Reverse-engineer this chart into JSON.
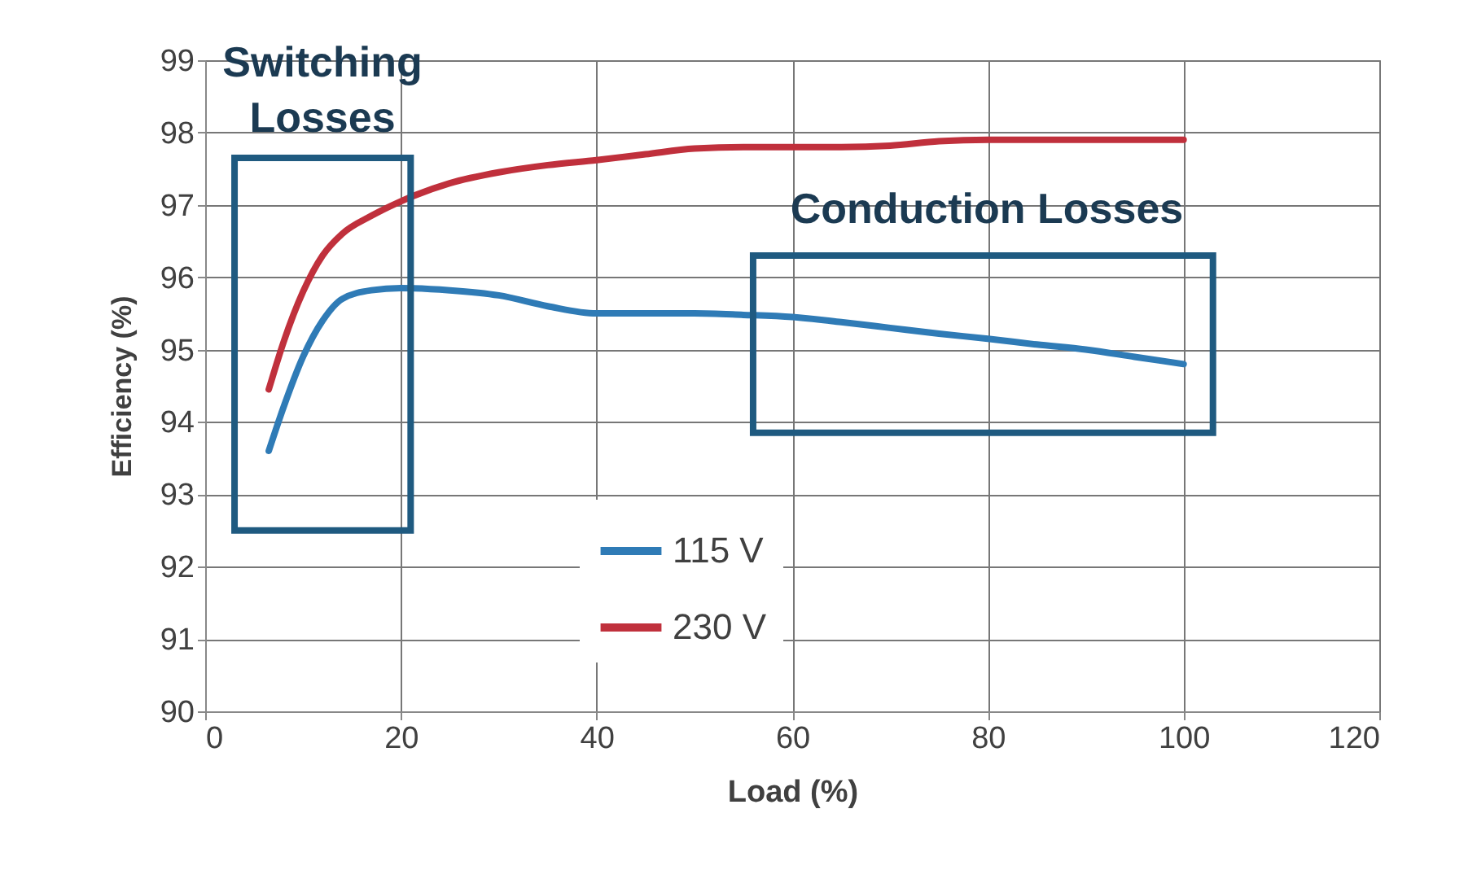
{
  "chart_data": {
    "type": "line",
    "xlabel": "Load (%)",
    "ylabel": "Efficiency (%)",
    "xlim": [
      0,
      120
    ],
    "xticks": [
      0,
      20,
      40,
      60,
      80,
      100,
      120
    ],
    "ylim": [
      90,
      99
    ],
    "yticks": [
      90,
      91,
      92,
      93,
      94,
      95,
      96,
      97,
      98,
      99
    ],
    "grid": true,
    "legend": "bottom left",
    "marker": "none",
    "line_style": "solid",
    "annotations": [
      "Switching Losses",
      "Conduction Losses"
    ],
    "series": [
      {
        "name": "115 V",
        "color": "#2f7bb6",
        "x": [
          6.5,
          8,
          10,
          12,
          14,
          17,
          20,
          25,
          30,
          35,
          40,
          45,
          50,
          55,
          60,
          65,
          70,
          75,
          80,
          85,
          90,
          95,
          100
        ],
        "values": [
          93.6,
          94.2,
          94.9,
          95.4,
          95.7,
          95.82,
          95.85,
          95.82,
          95.75,
          95.6,
          95.5,
          95.5,
          95.5,
          95.48,
          95.45,
          95.38,
          95.3,
          95.22,
          95.15,
          95.07,
          95.0,
          94.9,
          94.8
        ]
      },
      {
        "name": "230 V",
        "color": "#c0303c",
        "x": [
          6.5,
          8,
          10,
          12,
          14,
          17,
          20,
          25,
          30,
          35,
          40,
          45,
          50,
          55,
          60,
          65,
          70,
          75,
          80,
          85,
          90,
          95,
          100
        ],
        "values": [
          94.45,
          95.1,
          95.8,
          96.3,
          96.6,
          96.85,
          97.05,
          97.3,
          97.45,
          97.55,
          97.62,
          97.7,
          97.78,
          97.8,
          97.8,
          97.8,
          97.82,
          97.88,
          97.9,
          97.9,
          97.9,
          97.9,
          97.9
        ]
      }
    ]
  }
}
